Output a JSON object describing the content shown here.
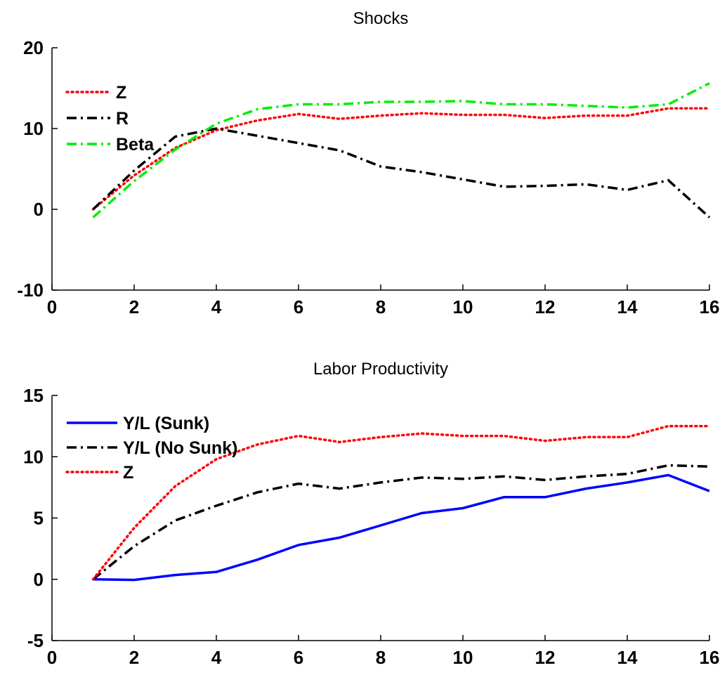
{
  "chart_data": [
    {
      "type": "line",
      "title": "Shocks",
      "xlabel": "",
      "ylabel": "",
      "xlim": [
        0,
        16
      ],
      "ylim": [
        -10,
        20
      ],
      "xticks": [
        0,
        2,
        4,
        6,
        8,
        10,
        12,
        14,
        16
      ],
      "yticks": [
        -10,
        0,
        10,
        20
      ],
      "grid": false,
      "legend_position": "top-left",
      "x": [
        1,
        2,
        3,
        4,
        5,
        6,
        7,
        8,
        9,
        10,
        11,
        12,
        13,
        14,
        15,
        16
      ],
      "series": [
        {
          "name": "Z",
          "color": "#ff0000",
          "style": "dotted",
          "values": [
            0,
            4.2,
            7.6,
            9.8,
            11.0,
            11.8,
            11.2,
            11.6,
            11.9,
            11.7,
            11.7,
            11.3,
            11.6,
            11.6,
            12.5,
            12.5
          ]
        },
        {
          "name": "R",
          "color": "#000000",
          "style": "dashdot",
          "values": [
            0,
            4.8,
            9.0,
            10.0,
            9.1,
            8.2,
            7.3,
            5.3,
            4.6,
            3.7,
            2.8,
            2.9,
            3.1,
            2.4,
            3.6,
            -1.0
          ]
        },
        {
          "name": "Beta",
          "color": "#00ee00",
          "style": "dashdot",
          "values": [
            -1.0,
            3.5,
            7.4,
            10.6,
            12.4,
            13.0,
            13.0,
            13.3,
            13.3,
            13.4,
            13.0,
            13.0,
            12.8,
            12.6,
            13.0,
            15.6
          ]
        }
      ]
    },
    {
      "type": "line",
      "title": "Labor Productivity",
      "xlabel": "",
      "ylabel": "",
      "xlim": [
        0,
        16
      ],
      "ylim": [
        -5,
        15
      ],
      "xticks": [
        0,
        2,
        4,
        6,
        8,
        10,
        12,
        14,
        16
      ],
      "yticks": [
        -5,
        0,
        5,
        10,
        15
      ],
      "grid": false,
      "legend_position": "top-left",
      "x": [
        1,
        2,
        3,
        4,
        5,
        6,
        7,
        8,
        9,
        10,
        11,
        12,
        13,
        14,
        15,
        16
      ],
      "series": [
        {
          "name": "Y/L (Sunk)",
          "color": "#0000ff",
          "style": "solid",
          "values": [
            0,
            -0.05,
            0.35,
            0.6,
            1.6,
            2.8,
            3.4,
            4.4,
            5.4,
            5.8,
            6.7,
            6.7,
            7.4,
            7.9,
            8.5,
            7.2
          ]
        },
        {
          "name": "Y/L (No Sunk)",
          "color": "#000000",
          "style": "dashdot",
          "values": [
            0,
            2.7,
            4.8,
            6.0,
            7.1,
            7.8,
            7.4,
            7.9,
            8.3,
            8.2,
            8.4,
            8.1,
            8.4,
            8.6,
            9.3,
            9.2
          ]
        },
        {
          "name": "Z",
          "color": "#ff0000",
          "style": "dotted",
          "values": [
            0,
            4.2,
            7.6,
            9.8,
            11.0,
            11.7,
            11.2,
            11.6,
            11.9,
            11.7,
            11.7,
            11.3,
            11.6,
            11.6,
            12.5,
            12.5
          ]
        }
      ]
    }
  ]
}
